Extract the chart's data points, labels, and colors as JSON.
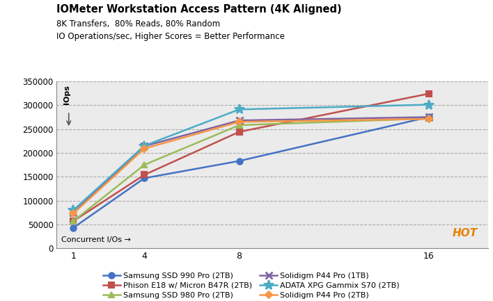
{
  "title": "IOMeter Workstation Access Pattern (4K Aligned)",
  "subtitle1": "8K Transfers,  80% Reads, 80% Random",
  "subtitle2": "IO Operations/sec, Higher Scores = Better Performance",
  "ylabel": "IOps",
  "xlabel": "Concurrent I/Os →",
  "x": [
    1,
    4,
    8,
    16
  ],
  "series": [
    {
      "label": "Samsung SSD 990 Pro (2TB)",
      "color": "#4472C4",
      "marker": "o",
      "data": [
        43000,
        147000,
        183000,
        275000
      ]
    },
    {
      "label": "Phison E18 w/ Micron B47R (2TB)",
      "color": "#C0504D",
      "marker": "s",
      "data": [
        57000,
        154000,
        244000,
        324000
      ]
    },
    {
      "label": "Samsung SSD 980 Pro (2TB)",
      "color": "#9BBB59",
      "marker": "^",
      "data": [
        57000,
        175000,
        258000,
        272000
      ]
    },
    {
      "label": "Solidigm P44 Pro (1TB)",
      "color": "#8064A2",
      "marker": "x",
      "data": [
        75000,
        214000,
        268000,
        275000
      ]
    },
    {
      "label": "ADATA XPG Gammix S70 (2TB)",
      "color": "#4BACC6",
      "marker": "*",
      "data": [
        80000,
        215000,
        291000,
        301000
      ]
    },
    {
      "label": "Solidigm P44 Pro (2TB)",
      "color": "#F79646",
      "marker": "D",
      "data": [
        73000,
        209000,
        265000,
        271000
      ]
    }
  ],
  "ylim": [
    0,
    350000
  ],
  "yticks": [
    0,
    50000,
    100000,
    150000,
    200000,
    250000,
    300000,
    350000
  ],
  "bg_color": "#EBEBEB",
  "grid_color": "#AAAAAA",
  "fig_bg": "#FFFFFF",
  "hot_text": "HOT",
  "hot_color": "#E8820A",
  "legend_order": [
    0,
    1,
    2,
    3,
    4,
    5
  ]
}
